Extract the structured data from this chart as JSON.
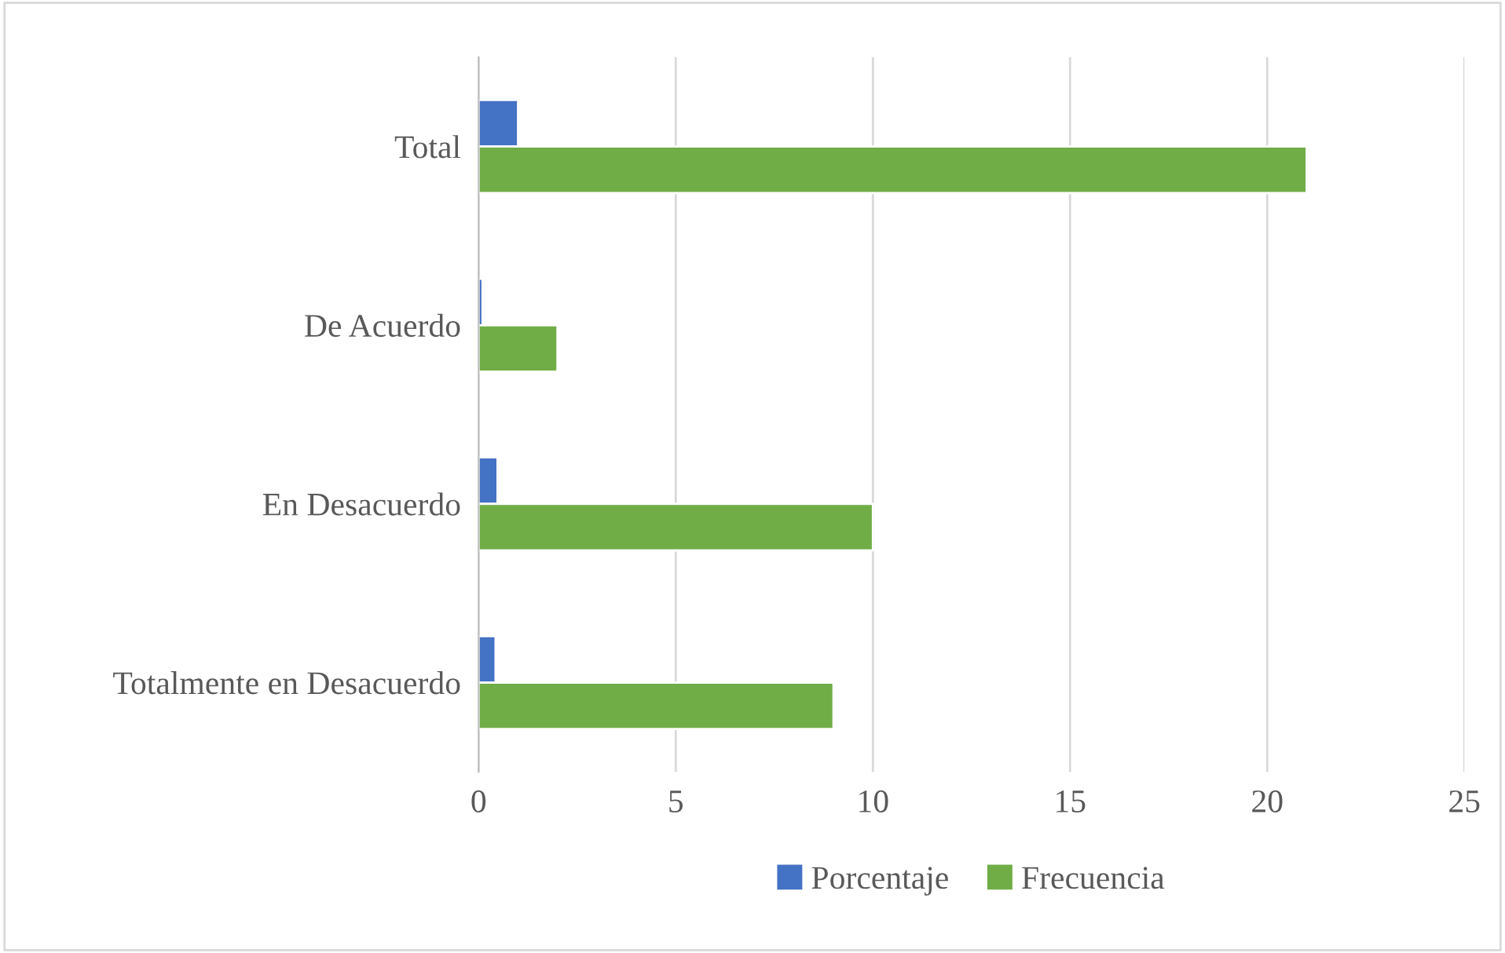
{
  "chart_data": {
    "type": "bar",
    "orientation": "horizontal",
    "categories": [
      "Total",
      "De Acuerdo",
      "En Desacuerdo",
      "Totalmente en Desacuerdo"
    ],
    "series": [
      {
        "name": "Porcentaje",
        "color": "#4472c4",
        "values": [
          1,
          0.1,
          0.48,
          0.43
        ]
      },
      {
        "name": "Frecuencia",
        "color": "#70ad47",
        "values": [
          21,
          2,
          10,
          9
        ]
      }
    ],
    "xlim": [
      0,
      25
    ],
    "xticks": [
      0,
      5,
      10,
      15,
      20,
      25
    ],
    "grid": "x",
    "legend": "bottom"
  }
}
